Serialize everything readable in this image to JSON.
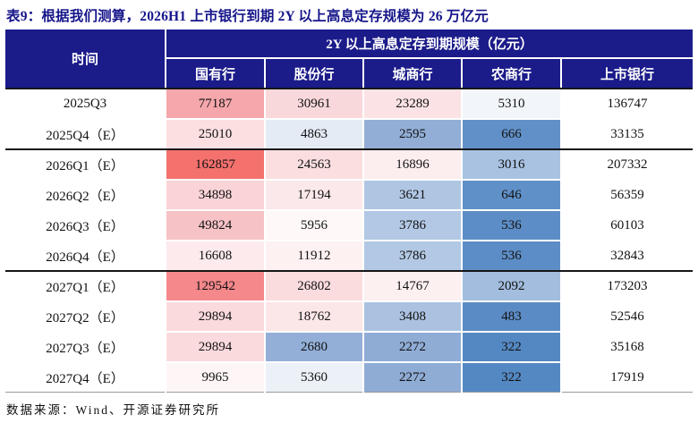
{
  "title": "表9：根据我们测算，2026H1 上市银行到期 2Y 以上高息定存规模为 26 万亿元",
  "colors": {
    "header_bg": "#1B1B8A",
    "title_color": "#15158A",
    "section_line": "#161616"
  },
  "table": {
    "time_header": "时间",
    "group_header": "2Y 以上高息定存到期规模（亿元）",
    "columns": [
      "国有行",
      "股份行",
      "城商行",
      "农商行",
      "上市银行"
    ],
    "rows": [
      {
        "time": "2025Q3",
        "section_end": false,
        "cells": [
          {
            "v": "77187",
            "bg": "#F5A7AB"
          },
          {
            "v": "30961",
            "bg": "#F9D8DB"
          },
          {
            "v": "23289",
            "bg": "#FBE2E4"
          },
          {
            "v": "5310",
            "bg": "#F2F5FA"
          },
          {
            "v": "136747",
            "bg": "#FFFFFF"
          }
        ]
      },
      {
        "time": "2025Q4（E）",
        "section_end": true,
        "cells": [
          {
            "v": "25010",
            "bg": "#FBDFE1"
          },
          {
            "v": "4863",
            "bg": "#E4EBF5"
          },
          {
            "v": "2595",
            "bg": "#92AED6"
          },
          {
            "v": "666",
            "bg": "#6190C8"
          },
          {
            "v": "33135",
            "bg": "#FFFFFF"
          }
        ]
      },
      {
        "time": "2026Q1（E）",
        "section_end": false,
        "cells": [
          {
            "v": "162857",
            "bg": "#F4716E"
          },
          {
            "v": "24563",
            "bg": "#FADEE0"
          },
          {
            "v": "16896",
            "bg": "#FCEDEF"
          },
          {
            "v": "3016",
            "bg": "#A9C2E1"
          },
          {
            "v": "207332",
            "bg": "#FFFFFF"
          }
        ]
      },
      {
        "time": "2026Q2（E）",
        "section_end": false,
        "cells": [
          {
            "v": "34898",
            "bg": "#F9D3D6"
          },
          {
            "v": "17194",
            "bg": "#FBE8EA"
          },
          {
            "v": "3621",
            "bg": "#AFC6E3"
          },
          {
            "v": "646",
            "bg": "#6090C8"
          },
          {
            "v": "56359",
            "bg": "#FFFFFF"
          }
        ]
      },
      {
        "time": "2026Q3（E）",
        "section_end": false,
        "cells": [
          {
            "v": "49824",
            "bg": "#F7C2C6"
          },
          {
            "v": "5956",
            "bg": "#FEF8F8"
          },
          {
            "v": "3786",
            "bg": "#B2C8E4"
          },
          {
            "v": "536",
            "bg": "#5D8DC6"
          },
          {
            "v": "60103",
            "bg": "#FFFFFF"
          }
        ]
      },
      {
        "time": "2026Q4（E）",
        "section_end": true,
        "cells": [
          {
            "v": "16608",
            "bg": "#FCEAEC"
          },
          {
            "v": "11912",
            "bg": "#FDF1F2"
          },
          {
            "v": "3786",
            "bg": "#B2C8E4"
          },
          {
            "v": "536",
            "bg": "#5D8DC6"
          },
          {
            "v": "32843",
            "bg": "#FFFFFF"
          }
        ]
      },
      {
        "time": "2027Q1（E）",
        "section_end": false,
        "cells": [
          {
            "v": "129542",
            "bg": "#F5888B"
          },
          {
            "v": "26802",
            "bg": "#FADBDE"
          },
          {
            "v": "14767",
            "bg": "#FDF0F1"
          },
          {
            "v": "2092",
            "bg": "#A2BDDE"
          },
          {
            "v": "173203",
            "bg": "#FFFFFF"
          }
        ]
      },
      {
        "time": "2027Q2（E）",
        "section_end": false,
        "cells": [
          {
            "v": "29894",
            "bg": "#FADADD"
          },
          {
            "v": "18762",
            "bg": "#FBE6E8"
          },
          {
            "v": "3408",
            "bg": "#AAC2E0"
          },
          {
            "v": "483",
            "bg": "#5B8BC5"
          },
          {
            "v": "52546",
            "bg": "#FFFFFF"
          }
        ]
      },
      {
        "time": "2027Q3（E）",
        "section_end": false,
        "cells": [
          {
            "v": "29894",
            "bg": "#FADADD"
          },
          {
            "v": "2680",
            "bg": "#93AFD7"
          },
          {
            "v": "2272",
            "bg": "#8FACD5"
          },
          {
            "v": "322",
            "bg": "#5488C3"
          },
          {
            "v": "35168",
            "bg": "#FFFFFF"
          }
        ]
      },
      {
        "time": "2027Q4（E）",
        "section_end": false,
        "cells": [
          {
            "v": "9965",
            "bg": "#FEF6F6"
          },
          {
            "v": "5360",
            "bg": "#ECF1F8"
          },
          {
            "v": "2272",
            "bg": "#8FACD5"
          },
          {
            "v": "322",
            "bg": "#5488C3"
          },
          {
            "v": "17919",
            "bg": "#FFFFFF"
          }
        ]
      }
    ]
  },
  "footer": "数据来源：Wind、开源证券研究所"
}
